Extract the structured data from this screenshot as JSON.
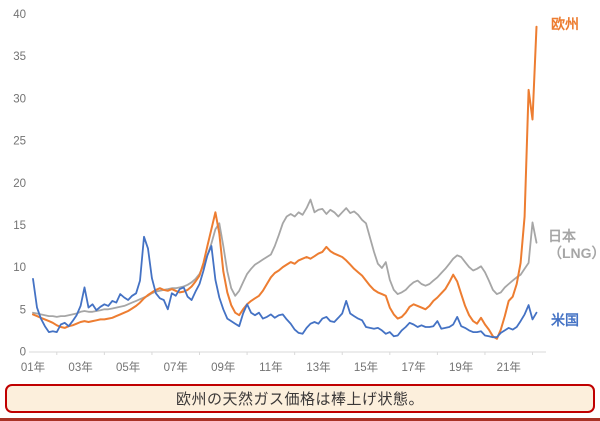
{
  "chart_data": {
    "type": "line",
    "title": "",
    "xlabel": "",
    "ylabel": "",
    "unit_note": "price level (USD/MMBtu scale implied)",
    "xlim": [
      2001,
      2022.1667
    ],
    "ylim": [
      0,
      40
    ],
    "x_start": 2001,
    "x_step_years": 0.1666667,
    "grid": false,
    "legend_position": "right-end-of-lines",
    "y_ticks": [
      0,
      5,
      10,
      15,
      20,
      25,
      30,
      35,
      40
    ],
    "x_tick_years": [
      2001,
      2003,
      2005,
      2007,
      2009,
      2011,
      2013,
      2015,
      2017,
      2019,
      2021
    ],
    "x_tick_labels": [
      "01年",
      "03年",
      "05年",
      "07年",
      "09年",
      "11年",
      "13年",
      "15年",
      "17年",
      "19年",
      "21年"
    ],
    "series": [
      {
        "name": "日本(LNG)",
        "color": "#A6A6A6",
        "stroke_width": 1.8,
        "values": [
          4.6,
          4.5,
          4.4,
          4.3,
          4.2,
          4.2,
          4.1,
          4.2,
          4.2,
          4.3,
          4.4,
          4.5,
          4.7,
          4.8,
          4.7,
          4.7,
          4.8,
          4.9,
          5.0,
          5.0,
          5.1,
          5.2,
          5.3,
          5.4,
          5.6,
          5.8,
          6.0,
          6.2,
          6.4,
          6.6,
          6.9,
          7.1,
          7.2,
          7.3,
          7.4,
          7.5,
          7.5,
          7.6,
          7.7,
          7.9,
          8.2,
          8.6,
          9.2,
          10.2,
          11.4,
          12.8,
          14.5,
          15.2,
          12.5,
          9.5,
          7.5,
          6.6,
          7.2,
          8.2,
          9.2,
          9.8,
          10.3,
          10.6,
          10.9,
          11.2,
          11.5,
          12.5,
          13.8,
          15.2,
          16.0,
          16.3,
          16.0,
          16.5,
          16.2,
          17.0,
          18.0,
          16.5,
          16.8,
          16.9,
          16.3,
          16.8,
          16.5,
          16.0,
          16.5,
          17.0,
          16.4,
          16.6,
          16.2,
          15.6,
          15.2,
          13.5,
          11.8,
          10.4,
          9.9,
          10.6,
          8.5,
          7.3,
          6.8,
          7.0,
          7.3,
          7.8,
          8.2,
          8.4,
          8.0,
          7.8,
          8.0,
          8.4,
          8.8,
          9.3,
          9.8,
          10.4,
          11.0,
          11.4,
          11.2,
          10.6,
          10.0,
          9.6,
          9.8,
          10.1,
          9.4,
          8.4,
          7.3,
          6.8,
          7.0,
          7.6,
          8.0,
          8.4,
          8.8,
          9.1,
          9.8,
          10.5,
          15.3,
          12.9
        ]
      },
      {
        "name": "欧州",
        "color": "#ED7D31",
        "stroke_width": 2,
        "values": [
          4.4,
          4.2,
          4.0,
          3.8,
          3.6,
          3.4,
          3.1,
          2.9,
          2.8,
          3.0,
          3.1,
          3.3,
          3.5,
          3.6,
          3.5,
          3.6,
          3.7,
          3.8,
          3.8,
          3.9,
          4.0,
          4.2,
          4.4,
          4.6,
          4.8,
          5.1,
          5.4,
          5.8,
          6.3,
          6.7,
          7.0,
          7.3,
          7.5,
          7.3,
          7.2,
          7.4,
          7.2,
          7.0,
          7.1,
          7.3,
          7.7,
          8.3,
          9.0,
          10.5,
          12.5,
          14.5,
          16.5,
          14.0,
          9.5,
          7.0,
          5.5,
          4.6,
          4.3,
          5.0,
          5.6,
          6.0,
          6.3,
          6.6,
          7.2,
          8.0,
          8.8,
          9.3,
          9.6,
          10.0,
          10.3,
          10.6,
          10.4,
          10.8,
          11.0,
          11.2,
          11.0,
          11.3,
          11.6,
          11.8,
          12.4,
          11.9,
          11.6,
          11.4,
          11.2,
          10.8,
          10.3,
          9.8,
          9.4,
          9.0,
          8.4,
          7.8,
          7.3,
          7.0,
          6.8,
          6.6,
          5.2,
          4.4,
          3.9,
          4.1,
          4.6,
          5.3,
          5.6,
          5.4,
          5.2,
          5.0,
          5.4,
          6.0,
          6.4,
          6.9,
          7.4,
          8.2,
          9.1,
          8.3,
          6.8,
          5.4,
          4.3,
          3.6,
          3.3,
          4.0,
          3.2,
          2.6,
          1.8,
          1.5,
          2.6,
          4.2,
          6.0,
          6.5,
          8.0,
          10.5,
          16.0,
          31.0,
          27.5,
          38.5
        ]
      },
      {
        "name": "米国",
        "color": "#4472C4",
        "stroke_width": 1.8,
        "values": [
          8.6,
          5.2,
          3.9,
          3.0,
          2.3,
          2.4,
          2.3,
          3.2,
          3.4,
          3.0,
          3.6,
          4.3,
          5.4,
          7.6,
          5.2,
          5.6,
          4.9,
          5.3,
          5.6,
          5.4,
          6.0,
          5.8,
          6.8,
          6.4,
          6.1,
          6.6,
          6.9,
          8.4,
          13.6,
          12.2,
          8.7,
          6.9,
          6.3,
          6.1,
          5.0,
          6.9,
          6.6,
          7.4,
          7.6,
          6.5,
          6.1,
          7.1,
          8.0,
          9.6,
          11.4,
          12.5,
          8.5,
          6.4,
          5.0,
          3.9,
          3.6,
          3.3,
          3.0,
          4.5,
          5.6,
          4.6,
          4.3,
          4.6,
          3.9,
          4.1,
          4.4,
          4.0,
          4.3,
          4.4,
          3.8,
          3.3,
          2.6,
          2.2,
          2.1,
          2.8,
          3.3,
          3.5,
          3.3,
          3.9,
          4.1,
          3.6,
          3.5,
          4.0,
          4.5,
          6.0,
          4.5,
          4.2,
          3.9,
          3.7,
          2.9,
          2.8,
          2.7,
          2.8,
          2.5,
          2.1,
          2.3,
          1.8,
          1.9,
          2.5,
          2.9,
          3.4,
          3.2,
          2.9,
          3.1,
          2.9,
          2.9,
          3.0,
          3.6,
          2.7,
          2.8,
          2.9,
          3.2,
          4.1,
          3.0,
          2.8,
          2.5,
          2.3,
          2.3,
          2.4,
          1.9,
          1.8,
          1.7,
          1.7,
          2.2,
          2.5,
          2.8,
          2.6,
          2.9,
          3.6,
          4.4,
          5.5,
          3.8,
          4.6
        ]
      }
    ]
  },
  "legend": {
    "europe_label": "欧州",
    "japan_label_line1": "日本",
    "japan_label_line2": "（LNG）",
    "us_label": "米国"
  },
  "caption": {
    "text": "欧州の天然ガス価格は棒上げ状態。"
  },
  "colors": {
    "europe": "#ED7D31",
    "japan": "#A6A6A6",
    "us": "#4472C4",
    "axis_text": "#737373",
    "axis_line": "#D9D9D9",
    "caption_bg": "#FCEFDC",
    "caption_border": "#C00000",
    "caption_text": "#3B3838",
    "bottom_rule": "#A93226"
  }
}
